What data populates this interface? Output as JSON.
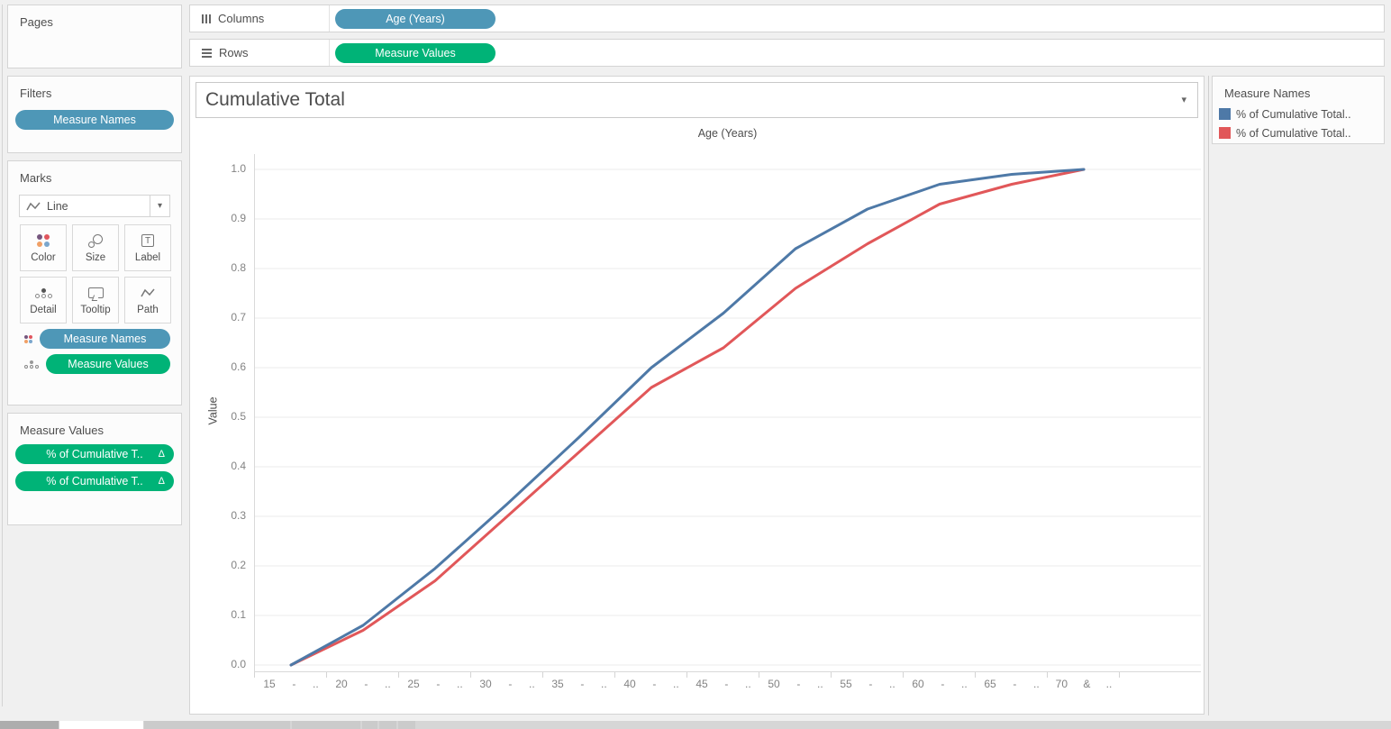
{
  "shelves": {
    "columns": {
      "label": "Columns",
      "pill": "Age (Years)"
    },
    "rows": {
      "label": "Rows",
      "pill": "Measure Values"
    }
  },
  "sidebar": {
    "pages": {
      "title": "Pages"
    },
    "filters": {
      "title": "Filters",
      "pills": [
        {
          "label": "Measure Names"
        }
      ]
    },
    "marks": {
      "title": "Marks",
      "mark_type": "Line",
      "buttons": [
        {
          "label": "Color"
        },
        {
          "label": "Size"
        },
        {
          "label": "Label"
        },
        {
          "label": "Detail"
        },
        {
          "label": "Tooltip"
        },
        {
          "label": "Path"
        }
      ],
      "pills": [
        {
          "label": "Measure Names",
          "role": "color"
        },
        {
          "label": "Measure Values",
          "role": "detail"
        }
      ]
    },
    "measure_values": {
      "title": "Measure Values",
      "pills": [
        {
          "label": "% of Cumulative T..",
          "suffix": "Δ"
        },
        {
          "label": "% of Cumulative T..",
          "suffix": "Δ"
        }
      ]
    }
  },
  "sheet": {
    "title": "Cumulative Total"
  },
  "legend": {
    "title": "Measure Names",
    "entries": [
      {
        "label": "% of Cumulative Total..",
        "color": "#4e79a7"
      },
      {
        "label": "% of Cumulative Total..",
        "color": "#e15759"
      }
    ]
  },
  "icons": {
    "caret_down": "▾",
    "delta": "Δ"
  },
  "colors": {
    "dimension_pill": "#4e97b7",
    "measure_pill": "#00b377",
    "series_blue": "#4e79a7",
    "series_red": "#e15759",
    "gridline": "#ebebeb",
    "axis_line": "#d9d9d9"
  },
  "chart_data": {
    "type": "line",
    "title": "Cumulative Total",
    "xlabel": "Age (Years)",
    "ylabel": "Value",
    "categories": [
      "15 - ..",
      "20 - ..",
      "25 - ..",
      "30 - ..",
      "35 - ..",
      "40 - ..",
      "45 - ..",
      "50 - ..",
      "55 - ..",
      "60 - ..",
      "65 - ..",
      "70 & .."
    ],
    "series": [
      {
        "name": "% of Cumulative Total..",
        "color": "#4e79a7",
        "values": [
          0.0,
          0.08,
          0.195,
          0.325,
          0.46,
          0.6,
          0.71,
          0.84,
          0.92,
          0.97,
          0.99,
          1.0
        ]
      },
      {
        "name": "% of Cumulative Total..",
        "color": "#e15759",
        "values": [
          0.0,
          0.07,
          0.17,
          0.3,
          0.43,
          0.56,
          0.64,
          0.76,
          0.85,
          0.93,
          0.97,
          1.0
        ]
      }
    ],
    "ylim": [
      0.0,
      1.0
    ],
    "yticks": [
      0.0,
      0.1,
      0.2,
      0.3,
      0.4,
      0.5,
      0.6,
      0.7,
      0.8,
      0.9,
      1.0
    ],
    "grid": true,
    "legend_position": "right"
  }
}
